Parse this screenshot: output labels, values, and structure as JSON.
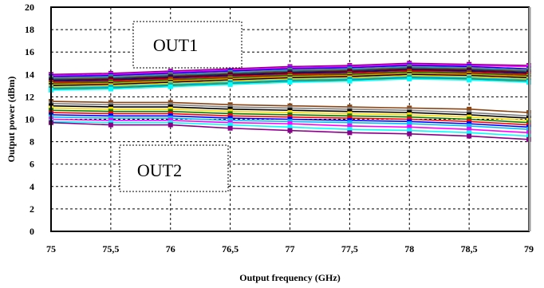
{
  "chart_data": {
    "type": "line",
    "xlabel": "Output frequency (GHz)",
    "ylabel": "Output power (dBm)",
    "x": [
      75,
      75.5,
      76,
      76.5,
      77,
      77.5,
      78,
      78.5,
      79
    ],
    "x_tick_labels": [
      "75",
      "75,5",
      "76",
      "76,5",
      "77",
      "77,5",
      "78",
      "78,5",
      "79"
    ],
    "y_tick_labels": [
      "0",
      "2",
      "4",
      "6",
      "8",
      "10",
      "12",
      "14",
      "16",
      "18",
      "20"
    ],
    "xlim": [
      75,
      79
    ],
    "ylim": [
      0,
      20
    ],
    "grid": true,
    "grid_style": "dashed",
    "legend": "none",
    "annotations": [
      {
        "label": "OUT1"
      },
      {
        "label": "OUT2"
      }
    ],
    "series": [
      {
        "values": [
          14.0,
          14.1,
          14.3,
          14.5,
          14.7,
          14.8,
          15.0,
          14.9,
          14.8
        ],
        "color": "#8b008b"
      },
      {
        "values": [
          13.9,
          14.0,
          14.2,
          14.4,
          14.6,
          14.7,
          14.9,
          14.8,
          14.7
        ],
        "color": "#ff00ff"
      },
      {
        "values": [
          13.8,
          13.9,
          14.1,
          14.3,
          14.5,
          14.6,
          14.8,
          14.7,
          14.5
        ],
        "color": "#0000ff"
      },
      {
        "values": [
          13.7,
          13.8,
          14.0,
          14.2,
          14.4,
          14.5,
          14.7,
          14.6,
          14.4
        ],
        "color": "#808080"
      },
      {
        "values": [
          13.6,
          13.7,
          13.9,
          14.1,
          14.3,
          14.4,
          14.6,
          14.5,
          14.3
        ],
        "color": "#008080"
      },
      {
        "values": [
          13.5,
          13.6,
          13.8,
          14.0,
          14.2,
          14.3,
          14.5,
          14.4,
          14.2
        ],
        "color": "#800000"
      },
      {
        "values": [
          13.4,
          13.5,
          13.7,
          13.9,
          14.1,
          14.2,
          14.4,
          14.3,
          14.1
        ],
        "color": "#000080"
      },
      {
        "values": [
          13.3,
          13.4,
          13.6,
          13.8,
          14.0,
          14.1,
          14.3,
          14.2,
          14.0
        ],
        "color": "#ff0000"
      },
      {
        "values": [
          13.2,
          13.3,
          13.5,
          13.7,
          13.9,
          14.0,
          14.2,
          14.1,
          13.9
        ],
        "color": "#008000"
      },
      {
        "values": [
          13.1,
          13.2,
          13.4,
          13.6,
          13.8,
          13.9,
          14.1,
          14.0,
          13.8
        ],
        "color": "#ff8c00"
      },
      {
        "values": [
          13.0,
          13.1,
          13.3,
          13.5,
          13.7,
          13.8,
          14.0,
          13.9,
          13.7
        ],
        "color": "#000000"
      },
      {
        "values": [
          12.9,
          13.0,
          13.2,
          13.4,
          13.6,
          13.7,
          13.9,
          13.8,
          13.6
        ],
        "color": "#ffd700"
      },
      {
        "values": [
          12.8,
          12.9,
          13.1,
          13.3,
          13.5,
          13.6,
          13.8,
          13.7,
          13.5
        ],
        "color": "#00bfff"
      },
      {
        "values": [
          12.7,
          12.8,
          13.0,
          13.2,
          13.4,
          13.5,
          13.7,
          13.6,
          13.4
        ],
        "color": "#2e8b57"
      },
      {
        "values": [
          12.6,
          12.7,
          12.9,
          13.1,
          13.3,
          13.4,
          13.6,
          13.5,
          13.3
        ],
        "color": "#00ffff"
      },
      {
        "values": [
          11.6,
          11.5,
          11.5,
          11.3,
          11.2,
          11.1,
          11.0,
          10.9,
          10.6
        ],
        "color": "#8b4513"
      },
      {
        "values": [
          11.4,
          11.3,
          11.3,
          11.1,
          11.0,
          10.9,
          10.8,
          10.6,
          10.3
        ],
        "color": "#808080"
      },
      {
        "values": [
          11.2,
          11.1,
          11.1,
          10.9,
          10.8,
          10.7,
          10.6,
          10.4,
          10.1
        ],
        "color": "#000000"
      },
      {
        "values": [
          11.0,
          10.9,
          10.9,
          10.7,
          10.6,
          10.5,
          10.4,
          10.2,
          9.9
        ],
        "color": "#ffd700"
      },
      {
        "values": [
          10.8,
          10.7,
          10.7,
          10.5,
          10.4,
          10.3,
          10.2,
          10.0,
          9.7
        ],
        "color": "#008000"
      },
      {
        "values": [
          10.6,
          10.5,
          10.5,
          10.3,
          10.2,
          10.1,
          10.0,
          9.8,
          9.5
        ],
        "color": "#ff0000"
      },
      {
        "values": [
          10.4,
          10.3,
          10.3,
          10.1,
          10.0,
          9.9,
          9.8,
          9.6,
          9.3
        ],
        "color": "#0000ff"
      },
      {
        "values": [
          10.2,
          10.1,
          10.1,
          9.9,
          9.8,
          9.7,
          9.6,
          9.4,
          9.1
        ],
        "color": "#00bfff"
      },
      {
        "values": [
          10.0,
          9.9,
          9.9,
          9.7,
          9.6,
          9.4,
          9.3,
          9.1,
          8.8
        ],
        "color": "#ff00ff"
      },
      {
        "values": [
          9.8,
          9.7,
          9.7,
          9.5,
          9.3,
          9.1,
          9.0,
          8.8,
          8.5
        ],
        "color": "#00ffff"
      },
      {
        "values": [
          9.7,
          9.5,
          9.5,
          9.2,
          9.0,
          8.8,
          8.7,
          8.5,
          8.2
        ],
        "color": "#8b008b"
      }
    ]
  }
}
